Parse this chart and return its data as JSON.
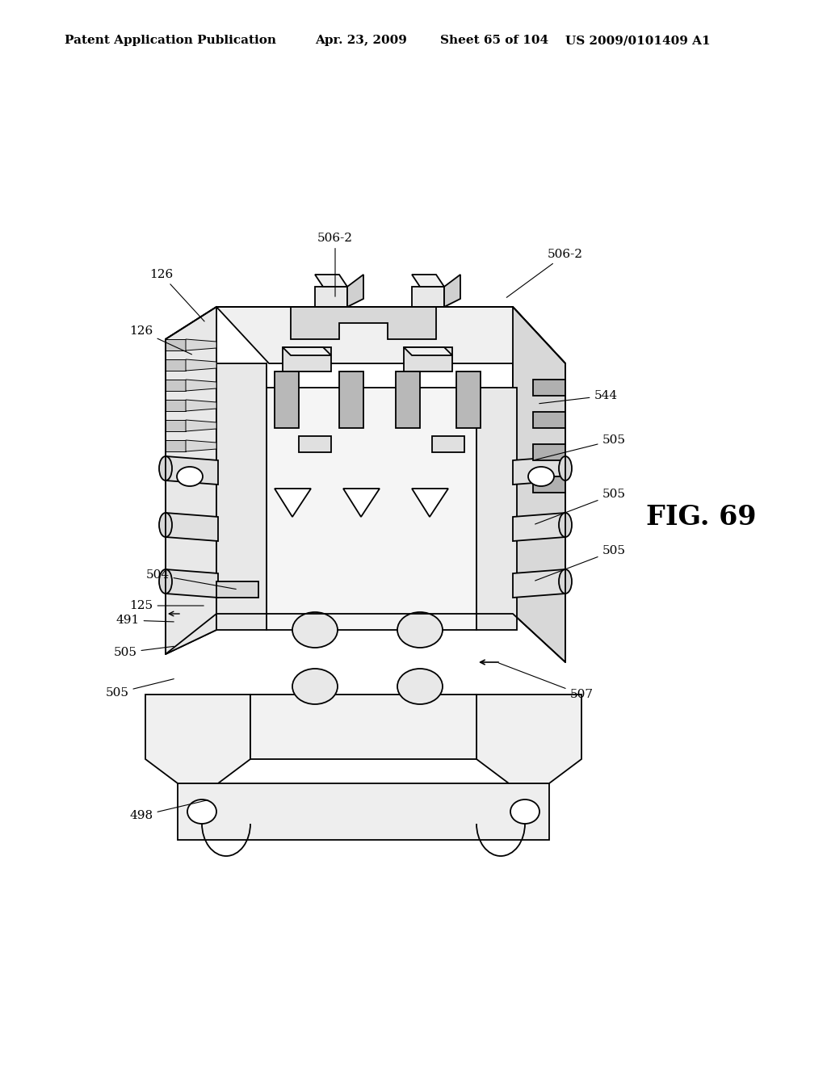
{
  "bg_color": "#ffffff",
  "header_text": "Patent Application Publication",
  "header_date": "Apr. 23, 2009",
  "header_sheet": "Sheet 65 of 104",
  "header_patent": "US 2009/0101409 A1",
  "fig_label": "FIG. 69",
  "fig_label_fontsize": 24,
  "header_fontsize": 11,
  "label_fontsize": 11,
  "line_color": "#000000",
  "line_width": 1.3
}
